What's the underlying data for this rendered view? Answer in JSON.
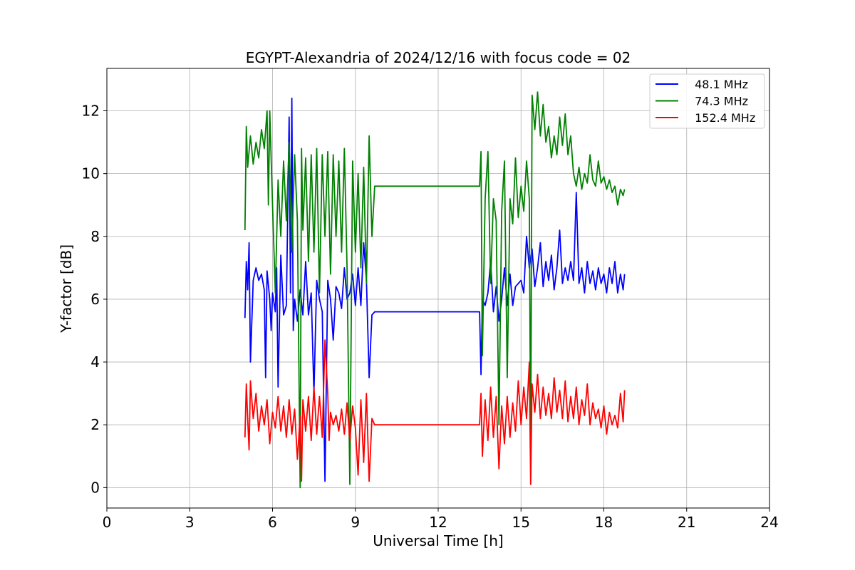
{
  "chart_data": {
    "type": "line",
    "title": "EGYPT-Alexandria of 2024/12/16 with focus code = 02",
    "xlabel": "Universal Time [h]",
    "ylabel": "Y-factor [dB]",
    "xlim": [
      0,
      24
    ],
    "ylim": [
      -0.65,
      13.35
    ],
    "xticks": [
      0,
      3,
      6,
      9,
      12,
      15,
      18,
      21,
      24
    ],
    "yticks": [
      0,
      2,
      4,
      6,
      8,
      10,
      12
    ],
    "grid": true,
    "legend_position": "top-right",
    "series": [
      {
        "name": " 48.1 MHz",
        "color": "#0000ff",
        "points": [
          [
            5.0,
            5.4
          ],
          [
            5.05,
            7.2
          ],
          [
            5.1,
            6.3
          ],
          [
            5.15,
            7.8
          ],
          [
            5.2,
            4.0
          ],
          [
            5.3,
            6.6
          ],
          [
            5.4,
            7.0
          ],
          [
            5.5,
            6.6
          ],
          [
            5.6,
            6.8
          ],
          [
            5.7,
            6.3
          ],
          [
            5.75,
            3.5
          ],
          [
            5.8,
            6.9
          ],
          [
            5.9,
            6.0
          ],
          [
            5.95,
            5.0
          ],
          [
            6.0,
            6.2
          ],
          [
            6.1,
            5.6
          ],
          [
            6.15,
            7.0
          ],
          [
            6.2,
            3.2
          ],
          [
            6.3,
            7.4
          ],
          [
            6.4,
            5.5
          ],
          [
            6.5,
            5.8
          ],
          [
            6.6,
            11.8
          ],
          [
            6.65,
            6.2
          ],
          [
            6.7,
            12.4
          ],
          [
            6.75,
            5.0
          ],
          [
            6.8,
            6.0
          ],
          [
            6.9,
            5.3
          ],
          [
            7.0,
            6.3
          ],
          [
            7.1,
            5.5
          ],
          [
            7.2,
            7.2
          ],
          [
            7.3,
            5.5
          ],
          [
            7.4,
            6.2
          ],
          [
            7.5,
            3.0
          ],
          [
            7.6,
            6.6
          ],
          [
            7.7,
            6.0
          ],
          [
            7.8,
            5.6
          ],
          [
            7.9,
            0.2
          ],
          [
            8.0,
            6.6
          ],
          [
            8.1,
            6.0
          ],
          [
            8.2,
            4.7
          ],
          [
            8.3,
            6.4
          ],
          [
            8.4,
            6.2
          ],
          [
            8.5,
            5.7
          ],
          [
            8.6,
            7.0
          ],
          [
            8.7,
            6.0
          ],
          [
            8.8,
            6.2
          ],
          [
            8.9,
            6.8
          ],
          [
            9.0,
            5.8
          ],
          [
            9.1,
            7.0
          ],
          [
            9.2,
            5.8
          ],
          [
            9.3,
            7.8
          ],
          [
            9.4,
            6.6
          ],
          [
            9.5,
            3.5
          ],
          [
            9.6,
            5.5
          ],
          [
            9.7,
            5.6
          ],
          [
            13.5,
            5.6
          ],
          [
            13.55,
            3.6
          ],
          [
            13.6,
            6.0
          ],
          [
            13.7,
            5.8
          ],
          [
            13.8,
            6.2
          ],
          [
            13.9,
            7.2
          ],
          [
            14.0,
            5.6
          ],
          [
            14.1,
            6.4
          ],
          [
            14.2,
            5.3
          ],
          [
            14.3,
            6.0
          ],
          [
            14.4,
            7.0
          ],
          [
            14.5,
            5.8
          ],
          [
            14.6,
            6.8
          ],
          [
            14.7,
            5.8
          ],
          [
            14.8,
            6.4
          ],
          [
            15.0,
            6.6
          ],
          [
            15.1,
            6.2
          ],
          [
            15.2,
            8.0
          ],
          [
            15.3,
            7.0
          ],
          [
            15.4,
            7.6
          ],
          [
            15.5,
            6.4
          ],
          [
            15.6,
            7.0
          ],
          [
            15.7,
            7.8
          ],
          [
            15.8,
            6.4
          ],
          [
            15.9,
            7.2
          ],
          [
            16.0,
            6.6
          ],
          [
            16.1,
            7.4
          ],
          [
            16.2,
            6.3
          ],
          [
            16.3,
            7.0
          ],
          [
            16.4,
            8.2
          ],
          [
            16.5,
            6.5
          ],
          [
            16.6,
            7.0
          ],
          [
            16.7,
            6.6
          ],
          [
            16.8,
            7.2
          ],
          [
            16.9,
            6.6
          ],
          [
            17.0,
            9.4
          ],
          [
            17.1,
            6.5
          ],
          [
            17.2,
            7.0
          ],
          [
            17.3,
            6.2
          ],
          [
            17.4,
            7.2
          ],
          [
            17.5,
            6.5
          ],
          [
            17.6,
            6.9
          ],
          [
            17.7,
            6.3
          ],
          [
            17.8,
            7.0
          ],
          [
            17.9,
            6.5
          ],
          [
            18.0,
            6.8
          ],
          [
            18.1,
            6.2
          ],
          [
            18.2,
            7.0
          ],
          [
            18.3,
            6.5
          ],
          [
            18.4,
            7.2
          ],
          [
            18.5,
            6.2
          ],
          [
            18.6,
            6.8
          ],
          [
            18.7,
            6.3
          ],
          [
            18.75,
            6.8
          ]
        ]
      },
      {
        "name": " 74.3 MHz",
        "color": "#008000",
        "points": [
          [
            5.0,
            8.2
          ],
          [
            5.05,
            11.5
          ],
          [
            5.1,
            10.2
          ],
          [
            5.2,
            11.2
          ],
          [
            5.3,
            10.3
          ],
          [
            5.4,
            11.0
          ],
          [
            5.5,
            10.5
          ],
          [
            5.6,
            11.4
          ],
          [
            5.7,
            10.8
          ],
          [
            5.8,
            12.0
          ],
          [
            5.85,
            9.0
          ],
          [
            5.9,
            12.0
          ],
          [
            6.0,
            9.0
          ],
          [
            6.1,
            6.2
          ],
          [
            6.2,
            9.8
          ],
          [
            6.3,
            8.0
          ],
          [
            6.4,
            10.4
          ],
          [
            6.5,
            8.5
          ],
          [
            6.6,
            11.0
          ],
          [
            6.7,
            7.5
          ],
          [
            6.8,
            10.6
          ],
          [
            6.9,
            8.5
          ],
          [
            7.0,
            0.0
          ],
          [
            7.05,
            10.8
          ],
          [
            7.1,
            8.2
          ],
          [
            7.2,
            10.5
          ],
          [
            7.3,
            7.2
          ],
          [
            7.4,
            10.6
          ],
          [
            7.5,
            7.5
          ],
          [
            7.6,
            10.8
          ],
          [
            7.7,
            6.2
          ],
          [
            7.8,
            10.6
          ],
          [
            7.9,
            8.0
          ],
          [
            8.0,
            10.7
          ],
          [
            8.1,
            6.8
          ],
          [
            8.2,
            10.6
          ],
          [
            8.3,
            8.0
          ],
          [
            8.4,
            10.4
          ],
          [
            8.5,
            7.5
          ],
          [
            8.6,
            10.8
          ],
          [
            8.7,
            7.0
          ],
          [
            8.8,
            0.1
          ],
          [
            8.9,
            10.4
          ],
          [
            9.0,
            7.5
          ],
          [
            9.1,
            10.0
          ],
          [
            9.2,
            7.0
          ],
          [
            9.3,
            10.2
          ],
          [
            9.4,
            6.5
          ],
          [
            9.5,
            11.2
          ],
          [
            9.6,
            8.0
          ],
          [
            9.7,
            9.6
          ],
          [
            13.5,
            9.6
          ],
          [
            13.55,
            10.7
          ],
          [
            13.6,
            4.2
          ],
          [
            13.7,
            9.2
          ],
          [
            13.8,
            10.7
          ],
          [
            13.9,
            6.5
          ],
          [
            14.0,
            9.2
          ],
          [
            14.1,
            8.5
          ],
          [
            14.2,
            2.0
          ],
          [
            14.3,
            8.8
          ],
          [
            14.4,
            10.4
          ],
          [
            14.5,
            3.5
          ],
          [
            14.6,
            9.2
          ],
          [
            14.7,
            8.4
          ],
          [
            14.8,
            10.5
          ],
          [
            14.9,
            8.6
          ],
          [
            15.0,
            9.6
          ],
          [
            15.1,
            8.8
          ],
          [
            15.2,
            10.4
          ],
          [
            15.3,
            9.2
          ],
          [
            15.35,
            1.0
          ],
          [
            15.4,
            12.5
          ],
          [
            15.5,
            11.4
          ],
          [
            15.6,
            12.6
          ],
          [
            15.7,
            11.2
          ],
          [
            15.8,
            12.2
          ],
          [
            15.9,
            11.0
          ],
          [
            16.0,
            11.5
          ],
          [
            16.1,
            10.5
          ],
          [
            16.2,
            11.2
          ],
          [
            16.3,
            10.6
          ],
          [
            16.4,
            11.8
          ],
          [
            16.5,
            10.9
          ],
          [
            16.6,
            11.9
          ],
          [
            16.7,
            10.6
          ],
          [
            16.8,
            11.2
          ],
          [
            16.9,
            10.0
          ],
          [
            17.0,
            9.6
          ],
          [
            17.1,
            10.2
          ],
          [
            17.2,
            9.5
          ],
          [
            17.3,
            10.0
          ],
          [
            17.4,
            9.7
          ],
          [
            17.5,
            10.6
          ],
          [
            17.6,
            9.8
          ],
          [
            17.7,
            9.6
          ],
          [
            17.8,
            10.4
          ],
          [
            17.9,
            9.7
          ],
          [
            18.0,
            9.9
          ],
          [
            18.1,
            9.5
          ],
          [
            18.2,
            9.8
          ],
          [
            18.3,
            9.4
          ],
          [
            18.4,
            9.6
          ],
          [
            18.5,
            9.0
          ],
          [
            18.6,
            9.5
          ],
          [
            18.7,
            9.3
          ],
          [
            18.75,
            9.5
          ]
        ]
      },
      {
        "name": " 152.4 MHz",
        "color": "#ff0000",
        "points": [
          [
            5.0,
            1.6
          ],
          [
            5.05,
            3.3
          ],
          [
            5.1,
            2.2
          ],
          [
            5.15,
            1.2
          ],
          [
            5.2,
            3.4
          ],
          [
            5.3,
            2.2
          ],
          [
            5.4,
            3.0
          ],
          [
            5.5,
            1.8
          ],
          [
            5.6,
            2.6
          ],
          [
            5.7,
            2.0
          ],
          [
            5.8,
            2.8
          ],
          [
            5.9,
            1.4
          ],
          [
            6.0,
            2.4
          ],
          [
            6.1,
            1.9
          ],
          [
            6.2,
            2.9
          ],
          [
            6.3,
            1.8
          ],
          [
            6.4,
            2.6
          ],
          [
            6.5,
            1.6
          ],
          [
            6.6,
            2.8
          ],
          [
            6.7,
            1.7
          ],
          [
            6.8,
            2.5
          ],
          [
            6.9,
            0.9
          ],
          [
            7.0,
            2.3
          ],
          [
            7.05,
            0.2
          ],
          [
            7.1,
            2.8
          ],
          [
            7.2,
            1.8
          ],
          [
            7.3,
            2.9
          ],
          [
            7.4,
            1.5
          ],
          [
            7.5,
            3.2
          ],
          [
            7.6,
            1.7
          ],
          [
            7.7,
            2.9
          ],
          [
            7.8,
            1.6
          ],
          [
            7.9,
            4.7
          ],
          [
            8.0,
            3.0
          ],
          [
            8.05,
            1.5
          ],
          [
            8.1,
            2.4
          ],
          [
            8.2,
            2.0
          ],
          [
            8.3,
            2.3
          ],
          [
            8.4,
            1.8
          ],
          [
            8.5,
            2.5
          ],
          [
            8.6,
            1.7
          ],
          [
            8.7,
            2.7
          ],
          [
            8.8,
            1.5
          ],
          [
            8.9,
            2.6
          ],
          [
            9.0,
            1.9
          ],
          [
            9.1,
            0.4
          ],
          [
            9.2,
            2.8
          ],
          [
            9.3,
            0.8
          ],
          [
            9.4,
            3.0
          ],
          [
            9.5,
            0.2
          ],
          [
            9.6,
            2.2
          ],
          [
            9.7,
            2.0
          ],
          [
            13.5,
            2.0
          ],
          [
            13.55,
            3.0
          ],
          [
            13.6,
            1.0
          ],
          [
            13.7,
            2.8
          ],
          [
            13.8,
            1.5
          ],
          [
            13.9,
            3.2
          ],
          [
            14.0,
            1.6
          ],
          [
            14.1,
            2.9
          ],
          [
            14.2,
            0.6
          ],
          [
            14.3,
            2.6
          ],
          [
            14.4,
            1.4
          ],
          [
            14.5,
            2.9
          ],
          [
            14.6,
            1.6
          ],
          [
            14.7,
            2.7
          ],
          [
            14.8,
            1.8
          ],
          [
            14.9,
            3.4
          ],
          [
            15.0,
            2.0
          ],
          [
            15.1,
            3.2
          ],
          [
            15.2,
            2.2
          ],
          [
            15.3,
            4.0
          ],
          [
            15.35,
            0.1
          ],
          [
            15.4,
            3.3
          ],
          [
            15.5,
            2.4
          ],
          [
            15.6,
            3.6
          ],
          [
            15.7,
            2.2
          ],
          [
            15.8,
            3.2
          ],
          [
            15.9,
            2.3
          ],
          [
            16.0,
            3.0
          ],
          [
            16.1,
            2.2
          ],
          [
            16.2,
            3.5
          ],
          [
            16.3,
            2.4
          ],
          [
            16.4,
            3.1
          ],
          [
            16.5,
            2.2
          ],
          [
            16.6,
            3.4
          ],
          [
            16.7,
            2.1
          ],
          [
            16.8,
            2.9
          ],
          [
            16.9,
            2.2
          ],
          [
            17.0,
            3.2
          ],
          [
            17.1,
            2.0
          ],
          [
            17.2,
            2.8
          ],
          [
            17.3,
            2.3
          ],
          [
            17.4,
            3.3
          ],
          [
            17.5,
            2.0
          ],
          [
            17.6,
            2.7
          ],
          [
            17.7,
            2.2
          ],
          [
            17.8,
            2.5
          ],
          [
            17.9,
            1.9
          ],
          [
            18.0,
            2.6
          ],
          [
            18.1,
            1.7
          ],
          [
            18.2,
            2.4
          ],
          [
            18.3,
            2.0
          ],
          [
            18.4,
            2.3
          ],
          [
            18.5,
            1.9
          ],
          [
            18.6,
            3.0
          ],
          [
            18.7,
            2.1
          ],
          [
            18.75,
            3.1
          ]
        ]
      }
    ]
  }
}
